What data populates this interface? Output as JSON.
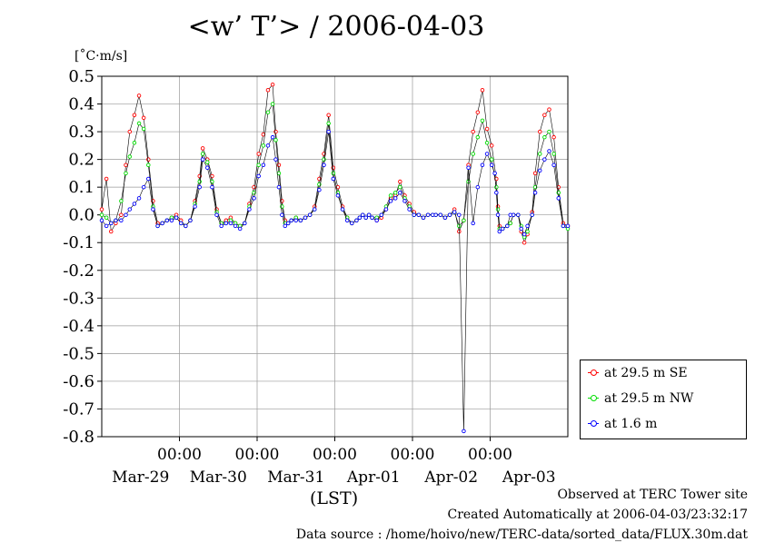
{
  "title": "<w’ T’> / 2006-04-03",
  "yunit": "[˚C·m/s]",
  "xunit": "(LST)",
  "footer": {
    "observed": "Observed at TERC Tower site",
    "created": "Created Automatically at 2006-04-03/23:32:17",
    "source": "Data source : /home/hoivo/new/TERC-data/sorted_data/FLUX.30m.dat"
  },
  "colors": {
    "se": "#ff0000",
    "nw": "#00dd00",
    "low": "#0000ff",
    "grid": "#999999"
  },
  "chart_data": {
    "type": "line",
    "title": "<w’ T’> / 2006-04-03",
    "ylabel": "[˚C·m/s]",
    "xlabel": "(LST)",
    "xlim": [
      0,
      6
    ],
    "ylim": [
      -0.8,
      0.5
    ],
    "yticks": [
      "0.5",
      "0.4",
      "0.3",
      "0.2",
      "0.1",
      "0.0",
      "-0.1",
      "-0.2",
      "-0.3",
      "-0.4",
      "-0.5",
      "-0.6",
      "-0.7",
      "-0.8"
    ],
    "xtick_time_labels": [
      "00:00",
      "00:00",
      "00:00",
      "00:00",
      "00:00"
    ],
    "xtick_positions_days": [
      1,
      2,
      3,
      4,
      5
    ],
    "date_labels": [
      "Mar-29",
      "Mar-30",
      "Mar-31",
      "Apr-01",
      "Apr-02",
      "Apr-03"
    ],
    "grid": true,
    "legend_position": "bottom-right",
    "series": [
      {
        "name": "at 29.5 m SE",
        "x": [
          0.0,
          0.06,
          0.12,
          0.18,
          0.25,
          0.31,
          0.36,
          0.42,
          0.48,
          0.54,
          0.6,
          0.66,
          0.72,
          0.78,
          0.84,
          0.9,
          0.96,
          1.02,
          1.08,
          1.14,
          1.2,
          1.26,
          1.3,
          1.36,
          1.42,
          1.48,
          1.54,
          1.6,
          1.66,
          1.72,
          1.78,
          1.84,
          1.9,
          1.96,
          2.02,
          2.08,
          2.14,
          2.2,
          2.24,
          2.28,
          2.32,
          2.36,
          2.4,
          2.44,
          2.5,
          2.56,
          2.62,
          2.68,
          2.74,
          2.8,
          2.86,
          2.92,
          2.98,
          3.04,
          3.1,
          3.16,
          3.22,
          3.28,
          3.32,
          3.36,
          3.4,
          3.44,
          3.48,
          3.54,
          3.6,
          3.66,
          3.72,
          3.78,
          3.84,
          3.9,
          3.96,
          4.02,
          4.08,
          4.14,
          4.2,
          4.26,
          4.3,
          4.36,
          4.42,
          4.48,
          4.54,
          4.6,
          4.66,
          4.72,
          4.78,
          4.84,
          4.9,
          4.96,
          5.02,
          5.08,
          5.1,
          5.12,
          5.16,
          5.22,
          5.26,
          5.3,
          5.36,
          5.4,
          5.44,
          5.48,
          5.54,
          5.58,
          5.64,
          5.7,
          5.76,
          5.82,
          5.88,
          5.94,
          6.0
        ],
        "y": [
          0.02,
          0.13,
          -0.06,
          -0.03,
          0.0,
          0.18,
          0.3,
          0.36,
          0.43,
          0.35,
          0.2,
          0.05,
          -0.03,
          -0.03,
          -0.02,
          -0.01,
          0.0,
          -0.02,
          -0.04,
          -0.02,
          0.05,
          0.14,
          0.24,
          0.2,
          0.14,
          0.02,
          -0.03,
          -0.02,
          -0.01,
          -0.03,
          -0.04,
          -0.03,
          0.04,
          0.1,
          0.22,
          0.29,
          0.45,
          0.47,
          0.3,
          0.18,
          0.05,
          -0.02,
          -0.03,
          -0.02,
          -0.01,
          -0.02,
          -0.01,
          0.0,
          0.03,
          0.13,
          0.22,
          0.36,
          0.17,
          0.1,
          0.03,
          -0.01,
          -0.03,
          -0.02,
          -0.01,
          0.0,
          -0.01,
          0.0,
          -0.01,
          -0.02,
          -0.01,
          0.02,
          0.06,
          0.07,
          0.12,
          0.07,
          0.04,
          0.01,
          0.0,
          -0.01,
          0.0,
          0.0,
          0.0,
          0.0,
          -0.01,
          0.0,
          0.02,
          -0.06,
          -0.02,
          0.18,
          0.3,
          0.37,
          0.45,
          0.31,
          0.25,
          0.13,
          0.03,
          -0.04,
          -0.05,
          -0.04,
          -0.03,
          0.0,
          0.0,
          -0.06,
          -0.1,
          -0.07,
          0.01,
          0.15,
          0.3,
          0.36,
          0.38,
          0.28,
          0.1,
          -0.03,
          -0.04
        ]
      },
      {
        "name": "at 29.5 m NW",
        "x": [
          0.0,
          0.06,
          0.12,
          0.18,
          0.25,
          0.31,
          0.36,
          0.42,
          0.48,
          0.54,
          0.6,
          0.66,
          0.72,
          0.78,
          0.84,
          0.9,
          0.96,
          1.02,
          1.08,
          1.14,
          1.2,
          1.26,
          1.3,
          1.36,
          1.42,
          1.48,
          1.54,
          1.6,
          1.66,
          1.72,
          1.78,
          1.84,
          1.9,
          1.96,
          2.02,
          2.08,
          2.14,
          2.2,
          2.24,
          2.28,
          2.32,
          2.36,
          2.4,
          2.44,
          2.5,
          2.56,
          2.62,
          2.68,
          2.74,
          2.8,
          2.86,
          2.92,
          2.98,
          3.04,
          3.1,
          3.16,
          3.22,
          3.28,
          3.32,
          3.36,
          3.4,
          3.44,
          3.48,
          3.54,
          3.6,
          3.66,
          3.72,
          3.78,
          3.84,
          3.9,
          3.96,
          4.02,
          4.08,
          4.14,
          4.2,
          4.26,
          4.3,
          4.36,
          4.42,
          4.48,
          4.54,
          4.6,
          4.66,
          4.72,
          4.78,
          4.84,
          4.9,
          4.96,
          5.02,
          5.08,
          5.1,
          5.12,
          5.16,
          5.22,
          5.26,
          5.3,
          5.36,
          5.4,
          5.44,
          5.48,
          5.54,
          5.58,
          5.64,
          5.7,
          5.76,
          5.82,
          5.88,
          5.94,
          6.0
        ],
        "y": [
          0.0,
          -0.01,
          -0.03,
          -0.02,
          0.05,
          0.15,
          0.21,
          0.26,
          0.33,
          0.31,
          0.18,
          0.03,
          -0.04,
          -0.03,
          -0.02,
          -0.01,
          -0.01,
          -0.03,
          -0.04,
          -0.02,
          0.04,
          0.12,
          0.22,
          0.19,
          0.12,
          0.01,
          -0.03,
          -0.03,
          -0.02,
          -0.03,
          -0.04,
          -0.03,
          0.03,
          0.08,
          0.18,
          0.25,
          0.37,
          0.4,
          0.27,
          0.15,
          0.03,
          -0.03,
          -0.03,
          -0.02,
          -0.01,
          -0.02,
          -0.01,
          0.0,
          0.02,
          0.11,
          0.2,
          0.33,
          0.15,
          0.08,
          0.02,
          -0.01,
          -0.03,
          -0.02,
          -0.01,
          0.0,
          -0.01,
          0.0,
          -0.01,
          -0.01,
          0.0,
          0.03,
          0.07,
          0.08,
          0.1,
          0.06,
          0.03,
          0.0,
          0.0,
          -0.01,
          0.0,
          0.0,
          0.0,
          0.0,
          -0.01,
          0.0,
          0.01,
          -0.04,
          -0.02,
          0.12,
          0.22,
          0.28,
          0.34,
          0.26,
          0.2,
          0.1,
          0.02,
          -0.05,
          -0.05,
          -0.04,
          -0.03,
          0.0,
          0.0,
          -0.04,
          -0.08,
          -0.06,
          0.0,
          0.1,
          0.22,
          0.28,
          0.3,
          0.22,
          0.08,
          -0.04,
          -0.05
        ]
      },
      {
        "name": "at 1.6 m",
        "x": [
          0.0,
          0.06,
          0.12,
          0.18,
          0.25,
          0.31,
          0.36,
          0.42,
          0.48,
          0.54,
          0.6,
          0.66,
          0.72,
          0.78,
          0.84,
          0.9,
          0.96,
          1.02,
          1.08,
          1.14,
          1.2,
          1.26,
          1.3,
          1.36,
          1.42,
          1.48,
          1.54,
          1.6,
          1.66,
          1.72,
          1.78,
          1.84,
          1.9,
          1.96,
          2.02,
          2.08,
          2.14,
          2.2,
          2.24,
          2.28,
          2.32,
          2.36,
          2.4,
          2.44,
          2.5,
          2.56,
          2.62,
          2.68,
          2.74,
          2.8,
          2.86,
          2.92,
          2.98,
          3.04,
          3.1,
          3.16,
          3.22,
          3.28,
          3.32,
          3.36,
          3.4,
          3.44,
          3.48,
          3.54,
          3.6,
          3.66,
          3.72,
          3.78,
          3.84,
          3.9,
          3.96,
          4.02,
          4.08,
          4.14,
          4.2,
          4.26,
          4.3,
          4.36,
          4.42,
          4.48,
          4.54,
          4.6,
          4.66,
          4.72,
          4.78,
          4.84,
          4.9,
          4.96,
          5.02,
          5.06,
          5.08,
          5.1,
          5.12,
          5.16,
          5.22,
          5.26,
          5.3,
          5.36,
          5.4,
          5.44,
          5.48,
          5.54,
          5.58,
          5.64,
          5.7,
          5.76,
          5.82,
          5.88,
          5.94,
          6.0
        ],
        "y": [
          -0.02,
          -0.04,
          -0.03,
          -0.02,
          -0.02,
          0.0,
          0.02,
          0.04,
          0.06,
          0.1,
          0.13,
          0.02,
          -0.04,
          -0.03,
          -0.02,
          -0.02,
          -0.01,
          -0.03,
          -0.04,
          -0.02,
          0.03,
          0.1,
          0.2,
          0.17,
          0.1,
          0.0,
          -0.04,
          -0.03,
          -0.03,
          -0.04,
          -0.05,
          -0.03,
          0.02,
          0.06,
          0.14,
          0.18,
          0.25,
          0.28,
          0.2,
          0.1,
          0.0,
          -0.04,
          -0.03,
          -0.02,
          -0.02,
          -0.02,
          -0.01,
          0.0,
          0.02,
          0.09,
          0.18,
          0.3,
          0.13,
          0.07,
          0.02,
          -0.02,
          -0.03,
          -0.02,
          -0.01,
          0.0,
          -0.01,
          0.0,
          -0.01,
          -0.02,
          0.0,
          0.02,
          0.05,
          0.06,
          0.08,
          0.05,
          0.02,
          0.0,
          0.0,
          -0.01,
          0.0,
          0.0,
          0.0,
          0.0,
          -0.01,
          0.0,
          0.01,
          0.0,
          -0.78,
          0.17,
          -0.03,
          0.1,
          0.18,
          0.22,
          0.18,
          0.15,
          0.08,
          0.0,
          -0.06,
          -0.05,
          -0.04,
          0.0,
          0.0,
          0.0,
          -0.05,
          -0.07,
          -0.04,
          0.0,
          0.08,
          0.16,
          0.2,
          0.23,
          0.18,
          0.06,
          -0.04,
          -0.04
        ]
      }
    ]
  }
}
